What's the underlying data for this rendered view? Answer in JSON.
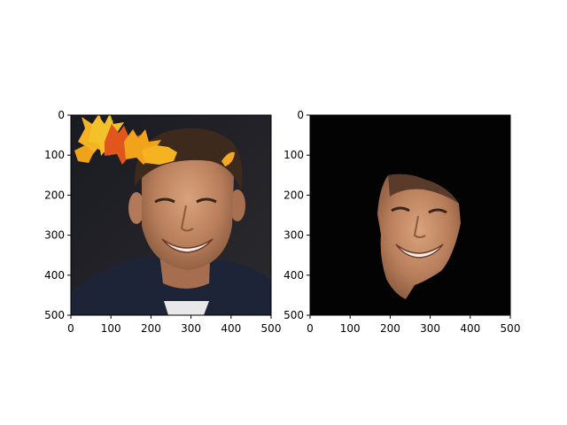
{
  "chart_data": [
    {
      "type": "image",
      "xlim": [
        0,
        500
      ],
      "ylim": [
        500,
        0
      ],
      "x_ticks": [
        "0",
        "100",
        "200",
        "300",
        "400",
        "500"
      ],
      "y_ticks": [
        "0",
        "100",
        "200",
        "300",
        "400",
        "500"
      ],
      "content": "photo of smiling man with autumn leaf decoration"
    },
    {
      "type": "image",
      "xlim": [
        0,
        500
      ],
      "ylim": [
        500,
        0
      ],
      "x_ticks": [
        "0",
        "100",
        "200",
        "300",
        "400",
        "500"
      ],
      "y_ticks": [
        "0",
        "100",
        "200",
        "300",
        "400",
        "500"
      ],
      "content": "segmented face on black background"
    }
  ]
}
